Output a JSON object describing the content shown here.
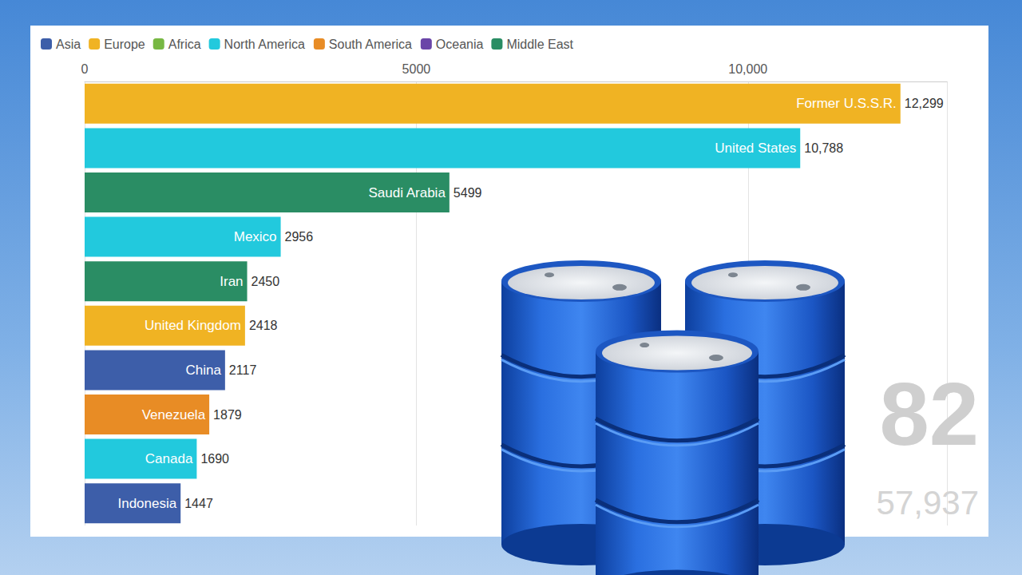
{
  "chart_data": {
    "type": "bar",
    "orientation": "horizontal",
    "categories": [
      "Former U.S.S.R.",
      "United States",
      "Saudi Arabia",
      "Mexico",
      "Iran",
      "United Kingdom",
      "China",
      "Venezuela",
      "Canada",
      "Indonesia"
    ],
    "series": [
      {
        "name": "Asia",
        "color": "#3d5ea9",
        "values": [
          null,
          null,
          null,
          null,
          null,
          null,
          2117,
          null,
          null,
          1447
        ],
        "value_labels": [
          null,
          null,
          null,
          null,
          null,
          null,
          "2117",
          null,
          null,
          "1447"
        ]
      },
      {
        "name": "Europe",
        "color": "#f0b323",
        "values": [
          12299,
          null,
          null,
          null,
          null,
          2418,
          null,
          null,
          null,
          null
        ],
        "value_labels": [
          "12,299",
          null,
          null,
          null,
          null,
          "2418",
          null,
          null,
          null,
          null
        ]
      },
      {
        "name": "Africa",
        "color": "#78b843",
        "values": [
          null,
          null,
          null,
          null,
          null,
          null,
          null,
          null,
          null,
          null
        ],
        "value_labels": [
          null,
          null,
          null,
          null,
          null,
          null,
          null,
          null,
          null,
          null
        ]
      },
      {
        "name": "North America",
        "color": "#22c9dd",
        "values": [
          null,
          10788,
          null,
          2956,
          null,
          null,
          null,
          null,
          1690,
          null
        ],
        "value_labels": [
          null,
          "10,788",
          null,
          "2956",
          null,
          null,
          null,
          null,
          "1690",
          null
        ]
      },
      {
        "name": "South America",
        "color": "#e88c25",
        "values": [
          null,
          null,
          null,
          null,
          null,
          null,
          null,
          1879,
          null,
          null
        ],
        "value_labels": [
          null,
          null,
          null,
          null,
          null,
          null,
          null,
          "1879",
          null,
          null
        ]
      },
      {
        "name": "Oceania",
        "color": "#6a45a8",
        "values": [
          null,
          null,
          null,
          null,
          null,
          null,
          null,
          null,
          null,
          null
        ],
        "value_labels": [
          null,
          null,
          null,
          null,
          null,
          null,
          null,
          null,
          null,
          null
        ]
      },
      {
        "name": "Middle East",
        "color": "#2a8d64",
        "values": [
          null,
          null,
          5499,
          null,
          2450,
          null,
          null,
          null,
          null,
          null
        ],
        "value_labels": [
          null,
          null,
          "5499",
          null,
          "2450",
          null,
          null,
          null,
          null,
          null
        ]
      }
    ],
    "xlim": [
      0,
      13000
    ],
    "xticks": [
      0,
      5000,
      {
        "value": 10000,
        "label": "10,000"
      }
    ],
    "grid": true,
    "legend": "top-left",
    "data_labels": true,
    "annotations": [
      "82",
      "57,937"
    ]
  }
}
